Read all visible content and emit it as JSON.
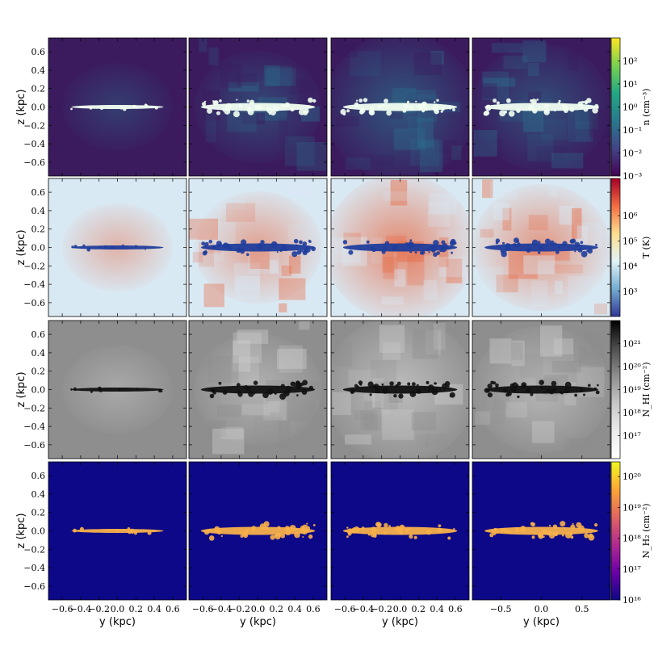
{
  "chart_data": {
    "type": "heatmap",
    "title": "",
    "grid": false,
    "columns": 4,
    "rows": [
      {
        "quantity": "density",
        "colormap": "viridis",
        "colorbar_label": "n (cm⁻³)",
        "colorbar_scale": "log",
        "colorbar_range": [
          0.001,
          1000
        ],
        "colorbar_ticks": [
          "10²",
          "10¹",
          "10⁰",
          "10⁻¹",
          "10⁻²",
          "10⁻³"
        ],
        "colorbar_tick_values": [
          100,
          10,
          1,
          0.1,
          0.01,
          0.001
        ],
        "background": "#3b1b5e",
        "disk": "#f2fff2",
        "halo": "#2b6f8c"
      },
      {
        "quantity": "temperature",
        "colormap": "RdYlBu_r",
        "colorbar_label": "T (K)",
        "colorbar_scale": "log",
        "colorbar_range": [
          100,
          30000000
        ],
        "colorbar_ticks": [
          "10⁶",
          "10⁵",
          "10⁴",
          "10³"
        ],
        "colorbar_tick_values": [
          1000000,
          100000,
          10000,
          1000
        ],
        "background": "#d9e9f4",
        "disk": "#1f3d9c",
        "halo": "#e8643c"
      },
      {
        "quantity": "HI column density",
        "colormap": "Greys",
        "colorbar_label": "N_HI (cm⁻²)",
        "colorbar_scale": "log",
        "colorbar_range": [
          10000000000000000,
          10000000000000000000000
        ],
        "colorbar_ticks": [
          "10²¹",
          "10²⁰",
          "10¹⁹",
          "10¹⁸",
          "10¹⁷"
        ],
        "colorbar_tick_values": [
          1e+21,
          1e+20,
          1e+19,
          1e+18,
          1e+17
        ],
        "background": "#8e8e8e",
        "disk": "#111111",
        "halo": "#cfcfcf"
      },
      {
        "quantity": "H2 column density",
        "colormap": "plasma",
        "colorbar_label": "N_H₂ (cm⁻²)",
        "colorbar_scale": "log",
        "colorbar_range": [
          10000000000000000,
          300000000000000000000
        ],
        "colorbar_ticks": [
          "10²⁰",
          "10¹⁹",
          "10¹⁸",
          "10¹⁷",
          "10¹⁶"
        ],
        "colorbar_tick_values": [
          1e+20,
          1e+19,
          1e+18,
          1e+17,
          1e+16
        ],
        "background": "#0d0887",
        "disk": "#f7b04a",
        "halo": "#0d0887"
      }
    ],
    "ylabel": "z  (kpc)",
    "ylim": [
      -0.75,
      0.75
    ],
    "yticks": [
      "0.6",
      "0.4",
      "0.2",
      "0.0",
      "−0.2",
      "−0.4",
      "−0.6"
    ],
    "ytick_values": [
      0.6,
      0.4,
      0.2,
      0.0,
      -0.2,
      -0.4,
      -0.6
    ],
    "xlabel": "y  (kpc)",
    "column_xaxes": [
      {
        "xlim": [
          -0.75,
          0.75
        ],
        "xticks": [
          "−0.6",
          "−0.4",
          "−0.2",
          "0.0",
          "0.2",
          "0.4",
          "0.6"
        ],
        "xtick_values": [
          -0.6,
          -0.4,
          -0.2,
          0.0,
          0.2,
          0.4,
          0.6
        ]
      },
      {
        "xlim": [
          -0.75,
          0.75
        ],
        "xticks": [
          "−0.6",
          "−0.4",
          "−0.2",
          "0.0",
          "0.2",
          "0.4",
          "0.6"
        ],
        "xtick_values": [
          -0.6,
          -0.4,
          -0.2,
          0.0,
          0.2,
          0.4,
          0.6
        ]
      },
      {
        "xlim": [
          -0.75,
          0.75
        ],
        "xticks": [
          "−0.6",
          "−0.4",
          "−0.2",
          "0.0",
          "0.2",
          "0.4",
          "0.6"
        ],
        "xtick_values": [
          -0.6,
          -0.4,
          -0.2,
          0.0,
          0.2,
          0.4,
          0.6
        ]
      },
      {
        "xlim": [
          -0.85,
          0.85
        ],
        "xticks": [
          "−0.5",
          "0.0",
          "0.5"
        ],
        "xtick_values": [
          -0.5,
          0.0,
          0.5
        ]
      }
    ],
    "disk_half_width": [
      0.5,
      0.62,
      0.62,
      0.7
    ],
    "outflow_strength": [
      0.2,
      0.45,
      0.8,
      0.6
    ]
  }
}
